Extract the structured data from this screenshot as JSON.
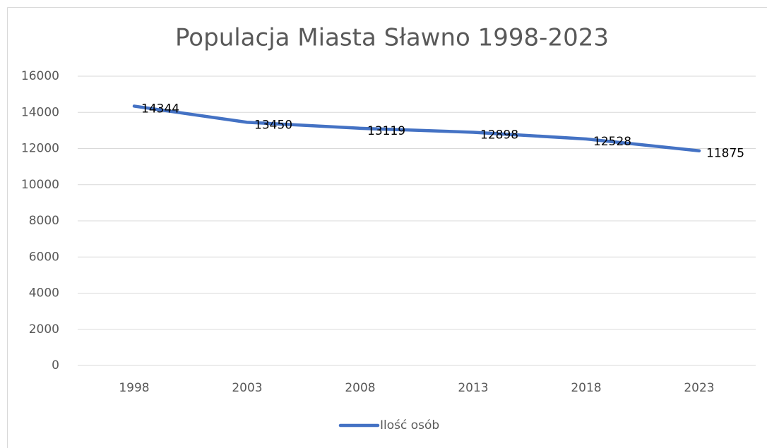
{
  "chart_data": {
    "type": "line",
    "title": "Populacja Miasta Sławno 1998-2023",
    "categories": [
      "1998",
      "2003",
      "2008",
      "2013",
      "2018",
      "2023"
    ],
    "series": [
      {
        "name": "Ilość osób",
        "color": "#4472c4",
        "values": [
          14344,
          13450,
          13119,
          12898,
          12528,
          11875
        ]
      }
    ],
    "ylim": [
      0,
      16000
    ],
    "yticks": [
      0,
      2000,
      4000,
      6000,
      8000,
      10000,
      12000,
      14000,
      16000
    ],
    "grid": true,
    "legend": "bottom",
    "data_labels": true
  }
}
